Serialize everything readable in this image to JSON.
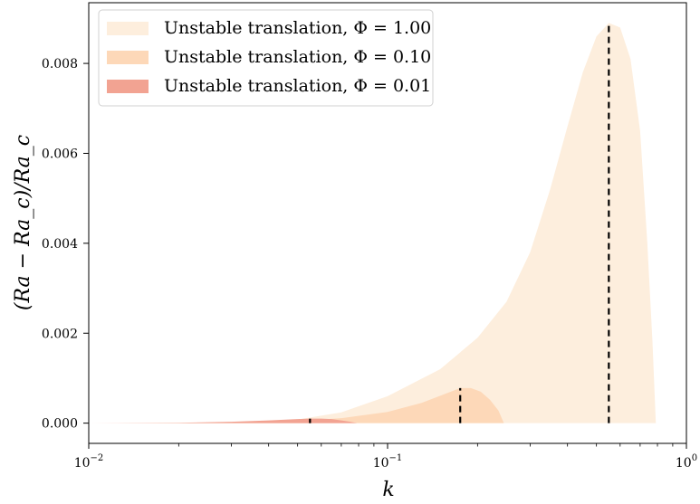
{
  "chart_data": {
    "type": "area",
    "xlabel": "k",
    "ylabel": "(Ra − Ra_c)/Ra_c",
    "x_scale": "log",
    "xlim": [
      0.01,
      1.0
    ],
    "ylim": [
      -0.00045,
      0.00935
    ],
    "x_ticks": [
      {
        "value": 0.01,
        "base": "10",
        "exp": "−2"
      },
      {
        "value": 0.1,
        "base": "10",
        "exp": "−1"
      },
      {
        "value": 1.0,
        "base": "10",
        "exp": "0"
      }
    ],
    "y_ticks": [
      {
        "value": 0.0,
        "label": "0.000"
      },
      {
        "value": 0.002,
        "label": "0.002"
      },
      {
        "value": 0.004,
        "label": "0.004"
      },
      {
        "value": 0.006,
        "label": "0.006"
      },
      {
        "value": 0.008,
        "label": "0.008"
      }
    ],
    "legend_position": "top-left",
    "series": [
      {
        "name": "Unstable translation, Φ = 1.00",
        "color": "#fdeedd",
        "k_peak": 0.55,
        "peak_value": 0.0089,
        "points": [
          [
            0.01,
            0.0
          ],
          [
            0.02,
            5e-06
          ],
          [
            0.03,
            1e-05
          ],
          [
            0.04,
            3e-05
          ],
          [
            0.05,
            8e-05
          ],
          [
            0.07,
            0.00024
          ],
          [
            0.1,
            0.0006
          ],
          [
            0.15,
            0.0012
          ],
          [
            0.2,
            0.0019
          ],
          [
            0.25,
            0.0027
          ],
          [
            0.3,
            0.0038
          ],
          [
            0.35,
            0.0052
          ],
          [
            0.4,
            0.0066
          ],
          [
            0.45,
            0.0078
          ],
          [
            0.5,
            0.0086
          ],
          [
            0.55,
            0.0089
          ],
          [
            0.6,
            0.0088
          ],
          [
            0.65,
            0.0081
          ],
          [
            0.7,
            0.0065
          ],
          [
            0.74,
            0.004
          ],
          [
            0.77,
            0.0018
          ],
          [
            0.79,
            0.0
          ]
        ]
      },
      {
        "name": "Unstable translation, Φ = 0.10",
        "color": "#fdd8b8",
        "k_peak": 0.175,
        "peak_value": 0.00078,
        "points": [
          [
            0.01,
            0.0
          ],
          [
            0.02,
            4e-06
          ],
          [
            0.03,
            1.5e-05
          ],
          [
            0.05,
            5e-05
          ],
          [
            0.07,
            0.00011
          ],
          [
            0.1,
            0.00025
          ],
          [
            0.13,
            0.00045
          ],
          [
            0.15,
            0.00061
          ],
          [
            0.175,
            0.00078
          ],
          [
            0.19,
            0.00078
          ],
          [
            0.205,
            0.0007
          ],
          [
            0.22,
            0.00052
          ],
          [
            0.235,
            0.00028
          ],
          [
            0.245,
            0.0
          ]
        ]
      },
      {
        "name": "Unstable translation, Φ = 0.01",
        "color": "#f2a392",
        "k_peak": 0.055,
        "peak_value": 0.0001,
        "points": [
          [
            0.01,
            0.0
          ],
          [
            0.02,
            8e-06
          ],
          [
            0.03,
            3e-05
          ],
          [
            0.04,
            6e-05
          ],
          [
            0.05,
            9e-05
          ],
          [
            0.055,
            0.0001
          ],
          [
            0.06,
            0.0001
          ],
          [
            0.065,
            9e-05
          ],
          [
            0.07,
            6e-05
          ],
          [
            0.075,
            3e-05
          ],
          [
            0.079,
            0.0
          ]
        ]
      }
    ]
  }
}
